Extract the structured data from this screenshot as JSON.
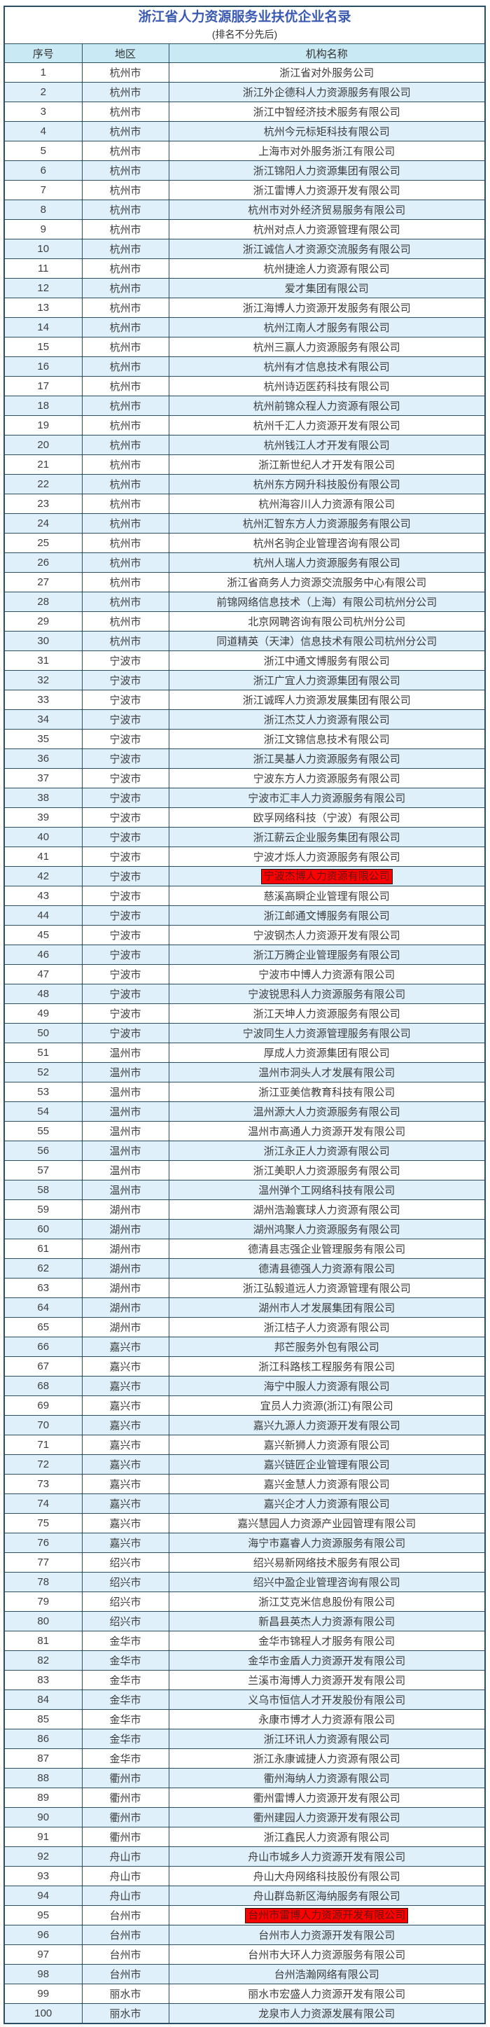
{
  "title": "浙江省人力资源服务业扶优企业名录",
  "subtitle": "(排名不分先后)",
  "colors": {
    "title": "#3a5ab2",
    "header_bg": "#c9eaf4",
    "row_bg": "#ffffff",
    "row_alt_bg": "#dff0fb",
    "border": "#2a4e63",
    "highlight_bg": "#fe0000",
    "highlight_text": "#6d1313"
  },
  "table": {
    "columns": [
      "序号",
      "地区",
      "机构名称"
    ],
    "highlighted_rows": [
      42,
      95
    ],
    "rows": [
      [
        1,
        "杭州市",
        "浙江省对外服务公司"
      ],
      [
        2,
        "杭州市",
        "浙江外企德科人力资源服务有限公司"
      ],
      [
        3,
        "杭州市",
        "浙江中智经济技术服务有限公司"
      ],
      [
        4,
        "杭州市",
        "杭州今元标矩科技有限公司"
      ],
      [
        5,
        "杭州市",
        "上海市对外服务浙江有限公司"
      ],
      [
        6,
        "杭州市",
        "浙江锦阳人力资源集团有限公司"
      ],
      [
        7,
        "杭州市",
        "浙江雷博人力资源开发有限公司"
      ],
      [
        8,
        "杭州市",
        "杭州市对外经济贸易服务有限公司"
      ],
      [
        9,
        "杭州市",
        "杭州对点人力资源管理有限公司"
      ],
      [
        10,
        "杭州市",
        "浙江诚信人才资源交流服务有限公司"
      ],
      [
        11,
        "杭州市",
        "杭州捷途人力资源有限公司"
      ],
      [
        12,
        "杭州市",
        "爱才集团有限公司"
      ],
      [
        13,
        "杭州市",
        "浙江海博人力资源开发服务有限公司"
      ],
      [
        14,
        "杭州市",
        "杭州江南人才服务有限公司"
      ],
      [
        15,
        "杭州市",
        "杭州三赢人力资源服务有限公司"
      ],
      [
        16,
        "杭州市",
        "杭州有才信息技术有限公司"
      ],
      [
        17,
        "杭州市",
        "杭州诗迈医药科技有限公司"
      ],
      [
        18,
        "杭州市",
        "杭州前锦众程人力资源有限公司"
      ],
      [
        19,
        "杭州市",
        "杭州千汇人力资源开发有限公司"
      ],
      [
        20,
        "杭州市",
        "杭州钱江人才开发有限公司"
      ],
      [
        21,
        "杭州市",
        "浙江新世纪人才开发有限公司"
      ],
      [
        22,
        "杭州市",
        "杭州东方网升科技股份有限公司"
      ],
      [
        23,
        "杭州市",
        "杭州海容川人力资源有限公司"
      ],
      [
        24,
        "杭州市",
        "杭州汇智东方人力资源服务有限公司"
      ],
      [
        25,
        "杭州市",
        "杭州名驹企业管理咨询有限公司"
      ],
      [
        26,
        "杭州市",
        "杭州人瑞人力资源服务有限公司"
      ],
      [
        27,
        "杭州市",
        "浙江省商务人力资源交流服务中心有限公司"
      ],
      [
        28,
        "杭州市",
        "前锦网络信息技术（上海）有限公司杭州分公司"
      ],
      [
        29,
        "杭州市",
        "北京网聘咨询有限公司杭州分公司"
      ],
      [
        30,
        "杭州市",
        "同道精英（天津）信息技术有限公司杭州分公司"
      ],
      [
        31,
        "宁波市",
        "浙江中通文博服务有限公司"
      ],
      [
        32,
        "宁波市",
        "浙江广宜人力资源集团有限公司"
      ],
      [
        33,
        "宁波市",
        "浙江诚晖人力资源发展集团有限公司"
      ],
      [
        34,
        "宁波市",
        "浙江杰艾人力资源有限公司"
      ],
      [
        35,
        "宁波市",
        "浙江文锦信息技术有限公司"
      ],
      [
        36,
        "宁波市",
        "浙江昊基人力资源服务有限公司"
      ],
      [
        37,
        "宁波市",
        "宁波东方人力资源服务有限公司"
      ],
      [
        38,
        "宁波市",
        "宁波市汇丰人力资源服务有限公司"
      ],
      [
        39,
        "宁波市",
        "欧孚网络科技（宁波）有限公司"
      ],
      [
        40,
        "宁波市",
        "浙江薪云企业服务集团有限公司"
      ],
      [
        41,
        "宁波市",
        "宁波才烁人力资源服务有限公司"
      ],
      [
        42,
        "宁波市",
        "宁波杰博人力资源有限公司"
      ],
      [
        43,
        "宁波市",
        "慈溪高瞬企业管理有限公司"
      ],
      [
        44,
        "宁波市",
        "浙江邮通文博服务有限公司"
      ],
      [
        45,
        "宁波市",
        "宁波钢杰人力资源开发有限公司"
      ],
      [
        46,
        "宁波市",
        "浙江万腾企业管理服务有限公司"
      ],
      [
        47,
        "宁波市",
        "宁波市中博人力资源有限公司"
      ],
      [
        48,
        "宁波市",
        "宁波锐思科人力资源服务有限公司"
      ],
      [
        49,
        "宁波市",
        "浙江天坤人力资源服务有限公司"
      ],
      [
        50,
        "宁波市",
        "宁波同生人力资源管理服务有限公司"
      ],
      [
        51,
        "温州市",
        "厚成人力资源集团有限公司"
      ],
      [
        52,
        "温州市",
        "温州市洞头人才发展有限公司"
      ],
      [
        53,
        "温州市",
        "浙江亚美信教育科技有限公司"
      ],
      [
        54,
        "温州市",
        "温州源大人力资源服务有限公司"
      ],
      [
        55,
        "温州市",
        "温州市高通人力资源开发有限公司"
      ],
      [
        56,
        "温州市",
        "浙江永正人力资源有限公司"
      ],
      [
        57,
        "温州市",
        "浙江美职人力资源服务有限公司"
      ],
      [
        58,
        "温州市",
        "温州弹个工网络科技有限公司"
      ],
      [
        59,
        "湖州市",
        "湖州浩瀚寰球人力资源有限公司"
      ],
      [
        60,
        "湖州市",
        "湖州鸿聚人力资源服务有限公司"
      ],
      [
        61,
        "湖州市",
        "德清县志强企业管理服务有限公司"
      ],
      [
        62,
        "湖州市",
        "德清县德强人力资源有限公司"
      ],
      [
        63,
        "湖州市",
        "浙江弘毅道远人力资源管理有限公司"
      ],
      [
        64,
        "湖州市",
        "湖州市人才发展集团有限公司"
      ],
      [
        65,
        "湖州市",
        "浙江桔子人力资源有限公司"
      ],
      [
        66,
        "嘉兴市",
        "邦芒服务外包有限公司"
      ],
      [
        67,
        "嘉兴市",
        "浙江科路核工程服务有限公司"
      ],
      [
        68,
        "嘉兴市",
        "海宁中服人力资源有限公司"
      ],
      [
        69,
        "嘉兴市",
        "宜员人力资源(浙江)有限公司"
      ],
      [
        70,
        "嘉兴市",
        "嘉兴九源人力资源开发有限公司"
      ],
      [
        71,
        "嘉兴市",
        "嘉兴新狮人力资源有限公司"
      ],
      [
        72,
        "嘉兴市",
        "嘉兴链匠企业管理有限公司"
      ],
      [
        73,
        "嘉兴市",
        "嘉兴金慧人力资源有限公司"
      ],
      [
        74,
        "嘉兴市",
        "嘉兴企才人力资源有限公司"
      ],
      [
        75,
        "嘉兴市",
        "嘉兴慧园人力资源产业园管理有限公司"
      ],
      [
        76,
        "嘉兴市",
        "海宁市嘉睿人力资源服务有限公司"
      ],
      [
        77,
        "绍兴市",
        "绍兴易新网络技术服务有限公司"
      ],
      [
        78,
        "绍兴市",
        "绍兴中盈企业管理咨询有限公司"
      ],
      [
        79,
        "绍兴市",
        "浙江艾克米信息股份有限公司"
      ],
      [
        80,
        "绍兴市",
        "新昌县英杰人力资源有限公司"
      ],
      [
        81,
        "金华市",
        "金华市锦程人才服务有限公司"
      ],
      [
        82,
        "金华市",
        "金华市金盾人力资源开发有限公司"
      ],
      [
        83,
        "金华市",
        "兰溪市海博人力资源开发有限公司"
      ],
      [
        84,
        "金华市",
        "义乌市恒信人才开发股份有限公司"
      ],
      [
        85,
        "金华市",
        "永康市博才人力资源有限公司"
      ],
      [
        86,
        "金华市",
        "浙江环讯人力资源有限公司"
      ],
      [
        87,
        "金华市",
        "浙江永康诚捷人力资源有限公司"
      ],
      [
        88,
        "衢州市",
        "衢州海纳人力资源有限公司"
      ],
      [
        89,
        "衢州市",
        "衢州雷博人力资源开发有限公司"
      ],
      [
        90,
        "衢州市",
        "衢州建园人力资源开发有限公司"
      ],
      [
        91,
        "衢州市",
        "浙江鑫民人力资源有限公司"
      ],
      [
        92,
        "舟山市",
        "舟山市城乡人力资源开发有限公司"
      ],
      [
        93,
        "舟山市",
        "舟山大舟网络科技股份有限公司"
      ],
      [
        94,
        "舟山市",
        "舟山群岛新区海纳服务有限公司"
      ],
      [
        95,
        "台州市",
        "台州市雷博人力资源开发有限公司"
      ],
      [
        96,
        "台州市",
        "台州市人力资源开发有限公司"
      ],
      [
        97,
        "台州市",
        "台州市大环人力资源服务有限公司"
      ],
      [
        98,
        "台州市",
        "台州浩瀚网络有限公司"
      ],
      [
        99,
        "丽水市",
        "丽水市宏盛人力资源开发有限公司"
      ],
      [
        100,
        "丽水市",
        "龙泉市人力资源发展有限公司"
      ]
    ]
  }
}
